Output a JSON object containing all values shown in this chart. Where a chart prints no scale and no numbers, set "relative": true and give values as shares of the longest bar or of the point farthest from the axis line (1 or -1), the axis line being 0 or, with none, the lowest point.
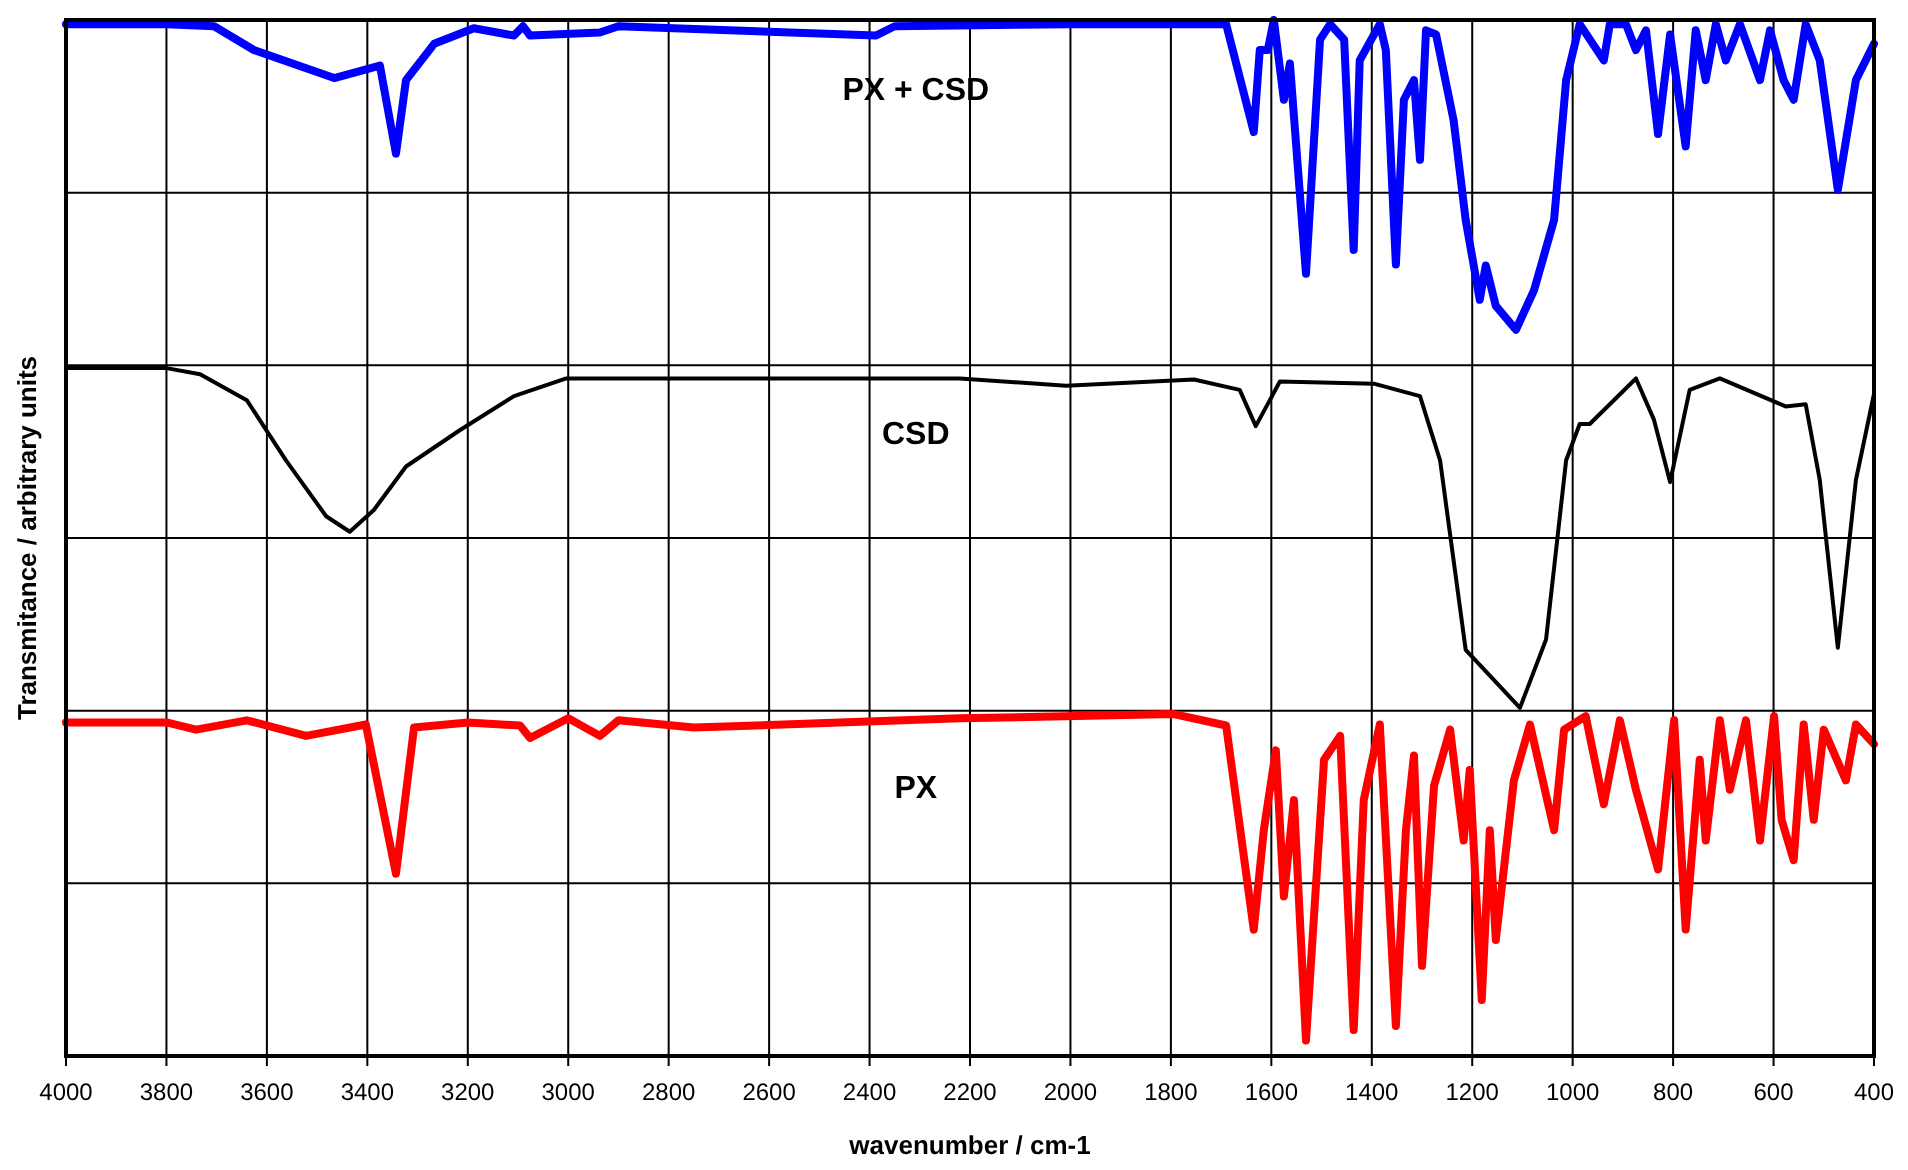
{
  "chart_data": {
    "type": "line",
    "relative": true,
    "xlabel": "wavenumber / cm-1",
    "ylabel": "Transmitance / arbitrary units",
    "xlim": [
      4000,
      400
    ],
    "xticks": [
      4000,
      3800,
      3600,
      3400,
      3200,
      3000,
      2800,
      2600,
      2400,
      2200,
      2000,
      1800,
      1600,
      1400,
      1200,
      1000,
      800,
      600,
      400
    ],
    "grid": true,
    "marker": "none",
    "line_style": "solid",
    "series": [
      {
        "name": "PX + CSD",
        "color": "#0000ff",
        "x": [
          4000,
          3800,
          3705,
          3626,
          3466,
          3375,
          3343,
          3323,
          3267,
          3188,
          3108,
          3090,
          3076,
          2937,
          2900,
          2387,
          2350,
          2000,
          1800,
          1690,
          1635,
          1623,
          1607,
          1595,
          1575,
          1563,
          1531,
          1503,
          1483,
          1455,
          1436,
          1424,
          1384,
          1372,
          1352,
          1336,
          1316,
          1304,
          1292,
          1272,
          1237,
          1213,
          1185,
          1173,
          1153,
          1113,
          1077,
          1037,
          1013,
          986,
          938,
          926,
          894,
          874,
          854,
          830,
          806,
          775,
          755,
          735,
          715,
          695,
          667,
          627,
          607,
          580,
          560,
          536,
          508,
          472,
          436,
          400
        ],
        "values": [
          0.996,
          0.996,
          0.994,
          0.971,
          0.944,
          0.956,
          0.871,
          0.942,
          0.977,
          0.992,
          0.985,
          0.994,
          0.985,
          0.988,
          0.994,
          0.985,
          0.994,
          0.996,
          0.996,
          0.996,
          0.892,
          0.971,
          0.971,
          1.0,
          0.923,
          0.958,
          0.755,
          0.981,
          0.996,
          0.981,
          0.778,
          0.961,
          0.996,
          0.971,
          0.764,
          0.923,
          0.942,
          0.865,
          0.99,
          0.986,
          0.903,
          0.807,
          0.73,
          0.763,
          0.724,
          0.701,
          0.739,
          0.807,
          0.942,
          0.996,
          0.961,
          0.996,
          0.996,
          0.971,
          0.99,
          0.89,
          0.986,
          0.878,
          0.99,
          0.942,
          0.996,
          0.961,
          0.996,
          0.942,
          0.99,
          0.942,
          0.923,
          0.996,
          0.961,
          0.836,
          0.942,
          0.977
        ]
      },
      {
        "name": "CSD",
        "color": "#000000",
        "x": [
          4000,
          3800,
          3733,
          3640,
          3562,
          3482,
          3435,
          3387,
          3323,
          3216,
          3108,
          3004,
          2800,
          2220,
          2009,
          1754,
          1663,
          1631,
          1583,
          1396,
          1304,
          1264,
          1213,
          1157,
          1105,
          1053,
          1013,
          986,
          966,
          874,
          838,
          806,
          767,
          707,
          576,
          536,
          508,
          472,
          436,
          400
        ],
        "values": [
          0.664,
          0.664,
          0.658,
          0.633,
          0.575,
          0.521,
          0.506,
          0.527,
          0.569,
          0.604,
          0.637,
          0.654,
          0.654,
          0.654,
          0.647,
          0.653,
          0.643,
          0.608,
          0.651,
          0.649,
          0.637,
          0.575,
          0.392,
          0.363,
          0.336,
          0.402,
          0.575,
          0.61,
          0.61,
          0.654,
          0.614,
          0.554,
          0.643,
          0.654,
          0.627,
          0.629,
          0.556,
          0.394,
          0.556,
          0.639
        ]
      },
      {
        "name": "PX",
        "color": "#ff0000",
        "x": [
          4000,
          3800,
          3741,
          3640,
          3522,
          3403,
          3343,
          3307,
          3200,
          3096,
          3076,
          3000,
          2937,
          2900,
          2750,
          2220,
          1794,
          1690,
          1635,
          1615,
          1591,
          1575,
          1555,
          1531,
          1495,
          1463,
          1436,
          1416,
          1384,
          1352,
          1332,
          1316,
          1300,
          1276,
          1244,
          1217,
          1205,
          1181,
          1165,
          1153,
          1117,
          1085,
          1037,
          1017,
          974,
          938,
          906,
          874,
          830,
          798,
          775,
          747,
          735,
          707,
          687,
          655,
          627,
          599,
          584,
          560,
          540,
          520,
          500,
          456,
          436,
          400
        ],
        "values": [
          0.322,
          0.322,
          0.315,
          0.324,
          0.309,
          0.32,
          0.176,
          0.317,
          0.322,
          0.319,
          0.307,
          0.326,
          0.309,
          0.324,
          0.317,
          0.326,
          0.33,
          0.319,
          0.122,
          0.218,
          0.295,
          0.154,
          0.247,
          0.015,
          0.286,
          0.309,
          0.025,
          0.247,
          0.32,
          0.029,
          0.218,
          0.29,
          0.087,
          0.261,
          0.315,
          0.208,
          0.276,
          0.054,
          0.218,
          0.112,
          0.266,
          0.32,
          0.218,
          0.315,
          0.328,
          0.243,
          0.324,
          0.257,
          0.18,
          0.324,
          0.122,
          0.286,
          0.208,
          0.324,
          0.257,
          0.324,
          0.208,
          0.328,
          0.228,
          0.189,
          0.32,
          0.228,
          0.315,
          0.266,
          0.32,
          0.301
        ]
      }
    ]
  }
}
